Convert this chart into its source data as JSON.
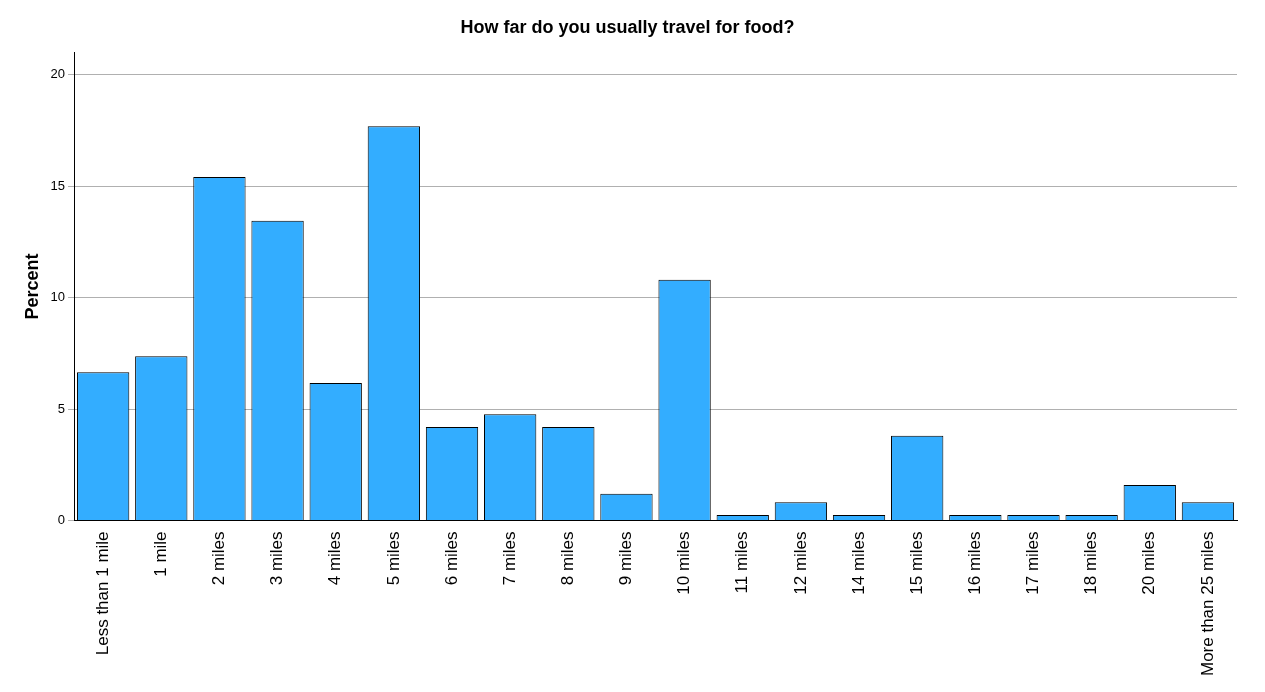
{
  "chart_data": {
    "type": "bar",
    "title": "How far do you usually travel for food?",
    "ylabel": "Percent",
    "categories": [
      "Less than 1 mile",
      "1 mile",
      "2 miles",
      "3 miles",
      "4 miles",
      "5 miles",
      "6 miles",
      "7 miles",
      "8 miles",
      "9 miles",
      "10 miles",
      "11 miles",
      "12 miles",
      "14 miles",
      "15 miles",
      "16 miles",
      "17 miles",
      "18 miles",
      "20 miles",
      "More than 25 miles"
    ],
    "values": [
      6.65,
      7.37,
      15.42,
      13.45,
      6.17,
      17.69,
      4.19,
      4.77,
      4.19,
      1.2,
      10.8,
      0.24,
      0.82,
      0.24,
      3.8,
      0.24,
      0.24,
      0.24,
      1.59,
      0.82
    ],
    "color": "#33adff",
    "ylim": [
      0,
      21
    ],
    "yticks": [
      0,
      5,
      10,
      15,
      20
    ],
    "grid": "y",
    "legend": false
  }
}
